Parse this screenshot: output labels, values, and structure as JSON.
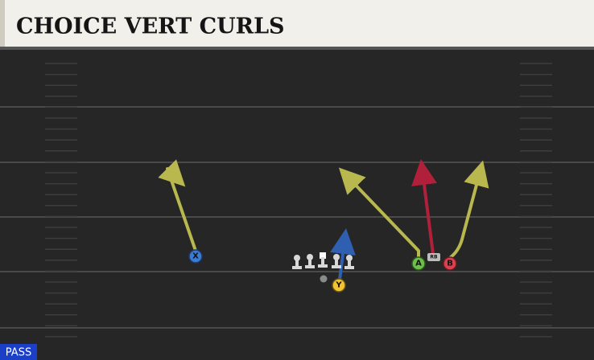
{
  "header": {
    "title": "CHOICE VERT CURLS"
  },
  "players": [
    {
      "label": "X"
    },
    {
      "label": "Y"
    },
    {
      "label": "A"
    },
    {
      "label": "B"
    },
    {
      "label": "RB"
    }
  ],
  "play_type": "PASS"
}
